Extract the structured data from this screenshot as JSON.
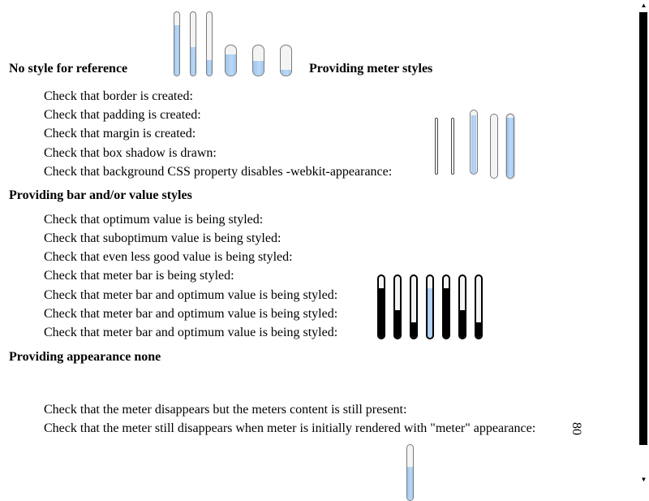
{
  "sections": {
    "no_style": "No style for reference",
    "meter_styles": "Providing meter styles",
    "bar_value": "Providing bar and/or value styles",
    "appearance_none": "Providing appearance none"
  },
  "meter_style_checks": [
    "Check that border is created:",
    "Check that padding is created:",
    "Check that margin is created:",
    "Check that box shadow is drawn:",
    "Check that background CSS property disables -webkit-appearance:"
  ],
  "bar_value_checks": [
    "Check that optimum value is being styled:",
    "Check that suboptimum value is being styled:",
    "Check that even less good value is being styled:",
    "Check that meter bar is being styled:",
    "Check that meter bar and optimum value is being styled:",
    "Check that meter bar and optimum value is being styled:",
    "Check that meter bar and optimum value is being styled:"
  ],
  "appearance_checks": [
    "Check that the meter disappears but the meters content is still present:",
    "Check that the meter still disappears when meter is initially rendered with \"meter\" appearance:"
  ],
  "rotated_content": "80",
  "reference_meters": [
    0.8,
    0.45,
    0.25,
    0.7,
    0.5,
    0.2
  ],
  "styled_meters": [
    0,
    0,
    1.0,
    0,
    0.95
  ],
  "bar_meters": [
    {
      "level": 0.8,
      "color": "dark"
    },
    {
      "level": 0.45,
      "color": "dark"
    },
    {
      "level": 0.25,
      "color": "dark"
    },
    {
      "level": 0.8,
      "color": "blue"
    },
    {
      "level": 0.8,
      "color": "dark"
    },
    {
      "level": 0.45,
      "color": "dark"
    },
    {
      "level": 0.25,
      "color": "dark"
    }
  ],
  "bottom_meter_level": 0.6,
  "colors": {
    "meter_fill": "#9fc6ee",
    "meter_bar_dark": "#000000",
    "meter_border": "#7a7a7a"
  }
}
